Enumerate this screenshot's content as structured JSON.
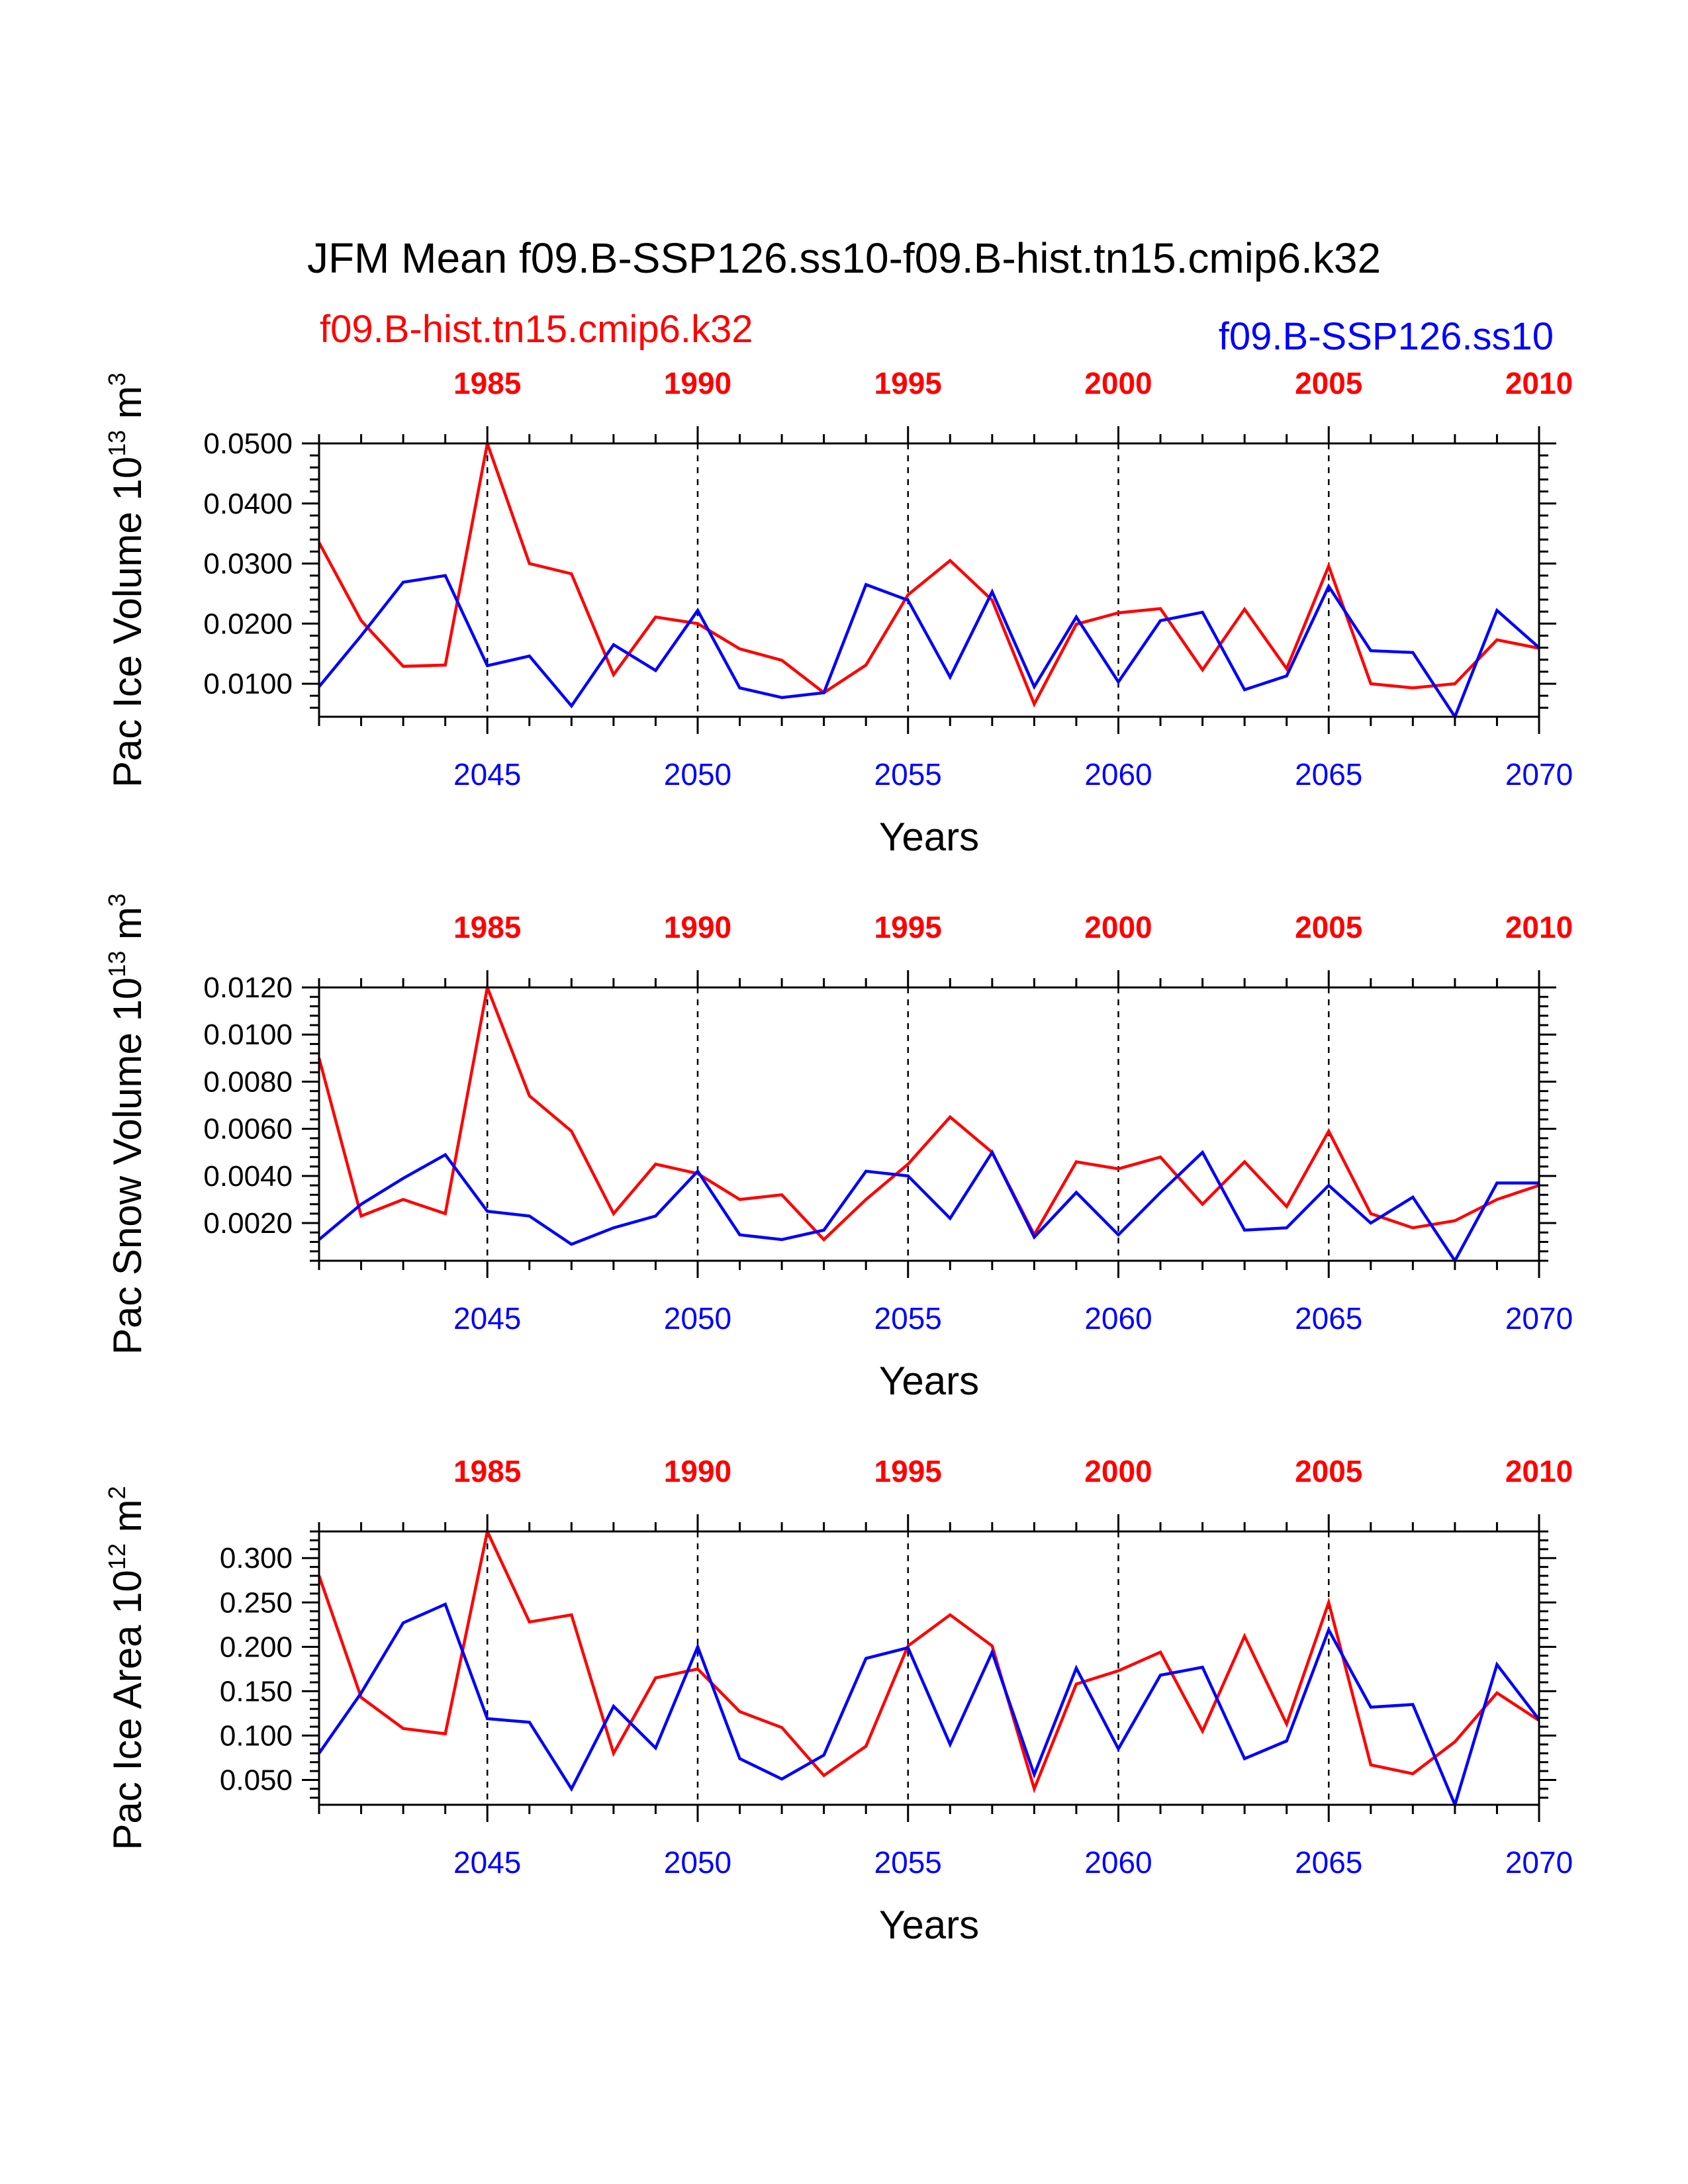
{
  "title": "JFM Mean f09.B-SSP126.ss10-f09.B-hist.tn15.cmip6.k32",
  "legend": {
    "left": {
      "text": "f09.B-hist.tn15.cmip6.k32",
      "color": "#ff0000"
    },
    "right": {
      "text": "f09.B-SSP126.ss10",
      "color": "#0000ff"
    }
  },
  "colors": {
    "red": "#ff0000",
    "blue": "#0000ff",
    "axis": "#000000"
  },
  "chart_data": [
    {
      "type": "line",
      "ylabel": {
        "main": "Pac Ice Volume 10",
        "sup1": "13",
        "mid": " m",
        "sup2": "3"
      },
      "xlabel": "Years",
      "x_bottom": {
        "range": [
          2041,
          2070
        ],
        "labels": [
          "2045",
          "2050",
          "2055",
          "2060",
          "2065",
          "2070"
        ],
        "color": "#0000ff"
      },
      "x_top": {
        "range": [
          1981,
          2010
        ],
        "labels": [
          "1985",
          "1990",
          "1995",
          "2000",
          "2005",
          "2010"
        ],
        "color": "#ff0000"
      },
      "ylim": [
        0.0045,
        0.05
      ],
      "yticks": [
        0.01,
        0.02,
        0.03,
        0.04,
        0.05
      ],
      "ytick_labels": [
        "0.0100",
        "0.0200",
        "0.0300",
        "0.0400",
        "0.0500"
      ],
      "series": [
        {
          "color": "#ff0000",
          "values": [
            0.0335,
            0.0205,
            0.0129,
            0.0131,
            0.05,
            0.03,
            0.0283,
            0.0115,
            0.0211,
            0.02,
            0.0158,
            0.0139,
            0.0085,
            0.0131,
            0.0248,
            0.0305,
            0.0239,
            0.0066,
            0.0199,
            0.0218,
            0.0225,
            0.0123,
            0.0224,
            0.0125,
            0.0296,
            0.01,
            0.0093,
            0.01,
            0.0173,
            0.0159
          ]
        },
        {
          "color": "#0000ff",
          "values": [
            0.0095,
            0.018,
            0.0269,
            0.028,
            0.013,
            0.0146,
            0.0063,
            0.0165,
            0.0122,
            0.0222,
            0.0093,
            0.0077,
            0.0085,
            0.0265,
            0.0239,
            0.0111,
            0.0253,
            0.0095,
            0.0211,
            0.0103,
            0.0205,
            0.0219,
            0.009,
            0.0113,
            0.0262,
            0.0155,
            0.0152,
            0.0045,
            0.0222,
            0.016
          ]
        }
      ]
    },
    {
      "type": "line",
      "ylabel": {
        "main": "Pac Snow Volume 10",
        "sup1": "13",
        "mid": " m",
        "sup2": "3"
      },
      "xlabel": "Years",
      "x_bottom": {
        "range": [
          2041,
          2070
        ],
        "labels": [
          "2045",
          "2050",
          "2055",
          "2060",
          "2065",
          "2070"
        ],
        "color": "#0000ff"
      },
      "x_top": {
        "range": [
          1981,
          2010
        ],
        "labels": [
          "1985",
          "1990",
          "1995",
          "2000",
          "2005",
          "2010"
        ],
        "color": "#ff0000"
      },
      "ylim": [
        0.0004,
        0.012
      ],
      "yticks": [
        0.002,
        0.004,
        0.006,
        0.008,
        0.01,
        0.012
      ],
      "ytick_labels": [
        "0.0020",
        "0.0040",
        "0.0060",
        "0.0080",
        "0.0100",
        "0.0120"
      ],
      "series": [
        {
          "color": "#ff0000",
          "values": [
            0.009,
            0.0023,
            0.003,
            0.0024,
            0.012,
            0.0074,
            0.0059,
            0.0024,
            0.0045,
            0.0041,
            0.003,
            0.0032,
            0.0013,
            0.003,
            0.0045,
            0.0065,
            0.005,
            0.0015,
            0.0046,
            0.0043,
            0.0048,
            0.0028,
            0.0046,
            0.0027,
            0.0059,
            0.0024,
            0.0018,
            0.0021,
            0.003,
            0.0036
          ]
        },
        {
          "color": "#0000ff",
          "values": [
            0.0013,
            0.0028,
            0.0039,
            0.0049,
            0.0025,
            0.0023,
            0.0011,
            0.0018,
            0.0023,
            0.0042,
            0.0015,
            0.0013,
            0.0017,
            0.0042,
            0.004,
            0.0022,
            0.005,
            0.0014,
            0.0033,
            0.0015,
            0.0033,
            0.005,
            0.0017,
            0.0018,
            0.0036,
            0.002,
            0.0031,
            0.0004,
            0.0037,
            0.0037
          ]
        }
      ]
    },
    {
      "type": "line",
      "ylabel": {
        "main": "Pac Ice Area 10",
        "sup1": "12",
        "mid": " m",
        "sup2": "2"
      },
      "xlabel": "Years",
      "x_bottom": {
        "range": [
          2041,
          2070
        ],
        "labels": [
          "2045",
          "2050",
          "2055",
          "2060",
          "2065",
          "2070"
        ],
        "color": "#0000ff"
      },
      "x_top": {
        "range": [
          1981,
          2010
        ],
        "labels": [
          "1985",
          "1990",
          "1995",
          "2000",
          "2005",
          "2010"
        ],
        "color": "#ff0000"
      },
      "ylim": [
        0.022,
        0.33
      ],
      "yticks": [
        0.05,
        0.1,
        0.15,
        0.2,
        0.25,
        0.3
      ],
      "ytick_labels": [
        "0.050",
        "0.100",
        "0.150",
        "0.200",
        "0.250",
        "0.300"
      ],
      "series": [
        {
          "color": "#ff0000",
          "values": [
            0.28,
            0.143,
            0.108,
            0.102,
            0.33,
            0.228,
            0.236,
            0.08,
            0.165,
            0.175,
            0.127,
            0.109,
            0.055,
            0.088,
            0.201,
            0.236,
            0.201,
            0.04,
            0.158,
            0.173,
            0.194,
            0.105,
            0.212,
            0.113,
            0.25,
            0.067,
            0.057,
            0.093,
            0.148,
            0.117
          ]
        },
        {
          "color": "#0000ff",
          "values": [
            0.08,
            0.148,
            0.227,
            0.248,
            0.119,
            0.115,
            0.04,
            0.133,
            0.086,
            0.2,
            0.074,
            0.051,
            0.078,
            0.187,
            0.199,
            0.09,
            0.194,
            0.056,
            0.176,
            0.085,
            0.168,
            0.177,
            0.074,
            0.094,
            0.219,
            0.132,
            0.135,
            0.022,
            0.18,
            0.118
          ]
        }
      ]
    }
  ]
}
